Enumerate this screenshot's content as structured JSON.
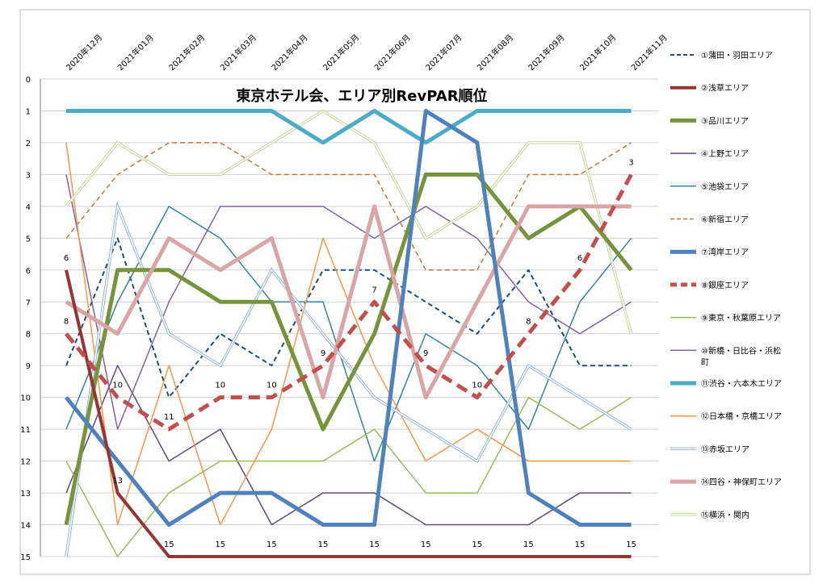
{
  "chart_data": {
    "type": "line",
    "title": "東京ホテル会、エリア別RevPAR順位",
    "xlabel": "",
    "ylabel": "",
    "ylim": [
      0,
      15
    ],
    "y_reversed": true,
    "y_ticks": [
      "0",
      "1",
      "2",
      "3",
      "4",
      "5",
      "6",
      "7",
      "8",
      "9",
      "10",
      "11",
      "12",
      "13",
      "14",
      "15"
    ],
    "grid": "horizontal",
    "legend_position": "right",
    "x": [
      "2020年12月",
      "2021年01月",
      "2021年02月",
      "2021年03月",
      "2021年04月",
      "2021年05月",
      "2021年06月",
      "2021年07月",
      "2021年08月",
      "2021年09月",
      "2021年10月",
      "2021年11月"
    ],
    "series": [
      {
        "name": "①蒲田・羽田エリア",
        "values": [
          9,
          5,
          10,
          8,
          9,
          6,
          6,
          7,
          8,
          6,
          9,
          9
        ],
        "color": "#1f4e79",
        "style": "dashed",
        "width": 2
      },
      {
        "name": "②浅草エリア",
        "values": [
          6,
          13,
          15,
          15,
          15,
          15,
          15,
          15,
          15,
          15,
          15,
          15
        ],
        "color": "#943634",
        "style": "solid",
        "width": 4,
        "labels": [
          "6",
          "13",
          "15",
          "15",
          "15",
          "15",
          "15",
          "15",
          "15",
          "15",
          "15",
          "15"
        ]
      },
      {
        "name": "③品川エリア",
        "values": [
          14,
          6,
          6,
          7,
          7,
          11,
          8,
          3,
          3,
          5,
          4,
          6
        ],
        "color": "#77933c",
        "style": "solid",
        "width": 5
      },
      {
        "name": "④上野エリア",
        "values": [
          13,
          9,
          12,
          11,
          14,
          13,
          13,
          14,
          14,
          14,
          13,
          13
        ],
        "color": "#604a7b",
        "style": "solid",
        "width": 1.5
      },
      {
        "name": "⑤池袋エリア",
        "values": [
          11,
          7,
          4,
          5,
          7,
          7,
          12,
          8,
          9,
          11,
          7,
          5
        ],
        "color": "#31859c",
        "style": "solid",
        "width": 1.5
      },
      {
        "name": "⑥新宿エリア",
        "values": [
          5,
          3,
          2,
          2,
          3,
          3,
          3,
          6,
          6,
          3,
          3,
          2
        ],
        "color": "#c0783c",
        "style": "dashed",
        "width": 1.5
      },
      {
        "name": "⑦湾岸エリア",
        "values": [
          10,
          12,
          14,
          13,
          13,
          14,
          14,
          1,
          2,
          13,
          14,
          14
        ],
        "color": "#4f81bd",
        "style": "solid",
        "width": 5
      },
      {
        "name": "⑧銀座エリア",
        "values": [
          8,
          10,
          11,
          10,
          10,
          9,
          7,
          9,
          10,
          8,
          6,
          3
        ],
        "color": "#c0504d",
        "style": "dashed",
        "width": 5,
        "labels": [
          "8",
          "10",
          "11",
          "10",
          "10",
          "9",
          "7",
          "9",
          "10",
          "8",
          "6",
          "3"
        ]
      },
      {
        "name": "⑨東京・秋葉原エリア",
        "values": [
          12,
          15,
          13,
          12,
          12,
          12,
          11,
          13,
          13,
          10,
          11,
          10
        ],
        "color": "#9bbb59",
        "style": "solid",
        "width": 1.5
      },
      {
        "name": "⑩新橋・日比谷・浜松町",
        "values": [
          3,
          11,
          7,
          4,
          4,
          4,
          5,
          4,
          5,
          7,
          8,
          7
        ],
        "color": "#8064a2",
        "style": "solid",
        "width": 1.5
      },
      {
        "name": "⑪渋谷・六本木エリア",
        "values": [
          1,
          1,
          1,
          1,
          1,
          2,
          1,
          2,
          1,
          1,
          1,
          1
        ],
        "color": "#4bacc6",
        "style": "solid",
        "width": 5
      },
      {
        "name": "⑫日本橋・京橋エリア",
        "values": [
          2,
          14,
          9,
          14,
          11,
          5,
          9,
          12,
          11,
          12,
          12,
          12
        ],
        "color": "#f79646",
        "style": "solid",
        "width": 1.5
      },
      {
        "name": "⑬赤坂エリア",
        "values": [
          15,
          4,
          8,
          9,
          6,
          8,
          10,
          11,
          12,
          9,
          10,
          11
        ],
        "color": "#95b3d7",
        "style": "double",
        "width": 3.5
      },
      {
        "name": "⑭四谷・神保町エリア",
        "values": [
          7,
          8,
          5,
          6,
          5,
          10,
          4,
          10,
          7,
          4,
          4,
          4
        ],
        "color": "#d9a5a5",
        "style": "solid",
        "width": 5
      },
      {
        "name": "⑮横浜・関内",
        "values": [
          4,
          2,
          3,
          3,
          2,
          1,
          2,
          5,
          4,
          2,
          2,
          8
        ],
        "color": "#c3d69b",
        "style": "double",
        "width": 3.5
      }
    ]
  }
}
